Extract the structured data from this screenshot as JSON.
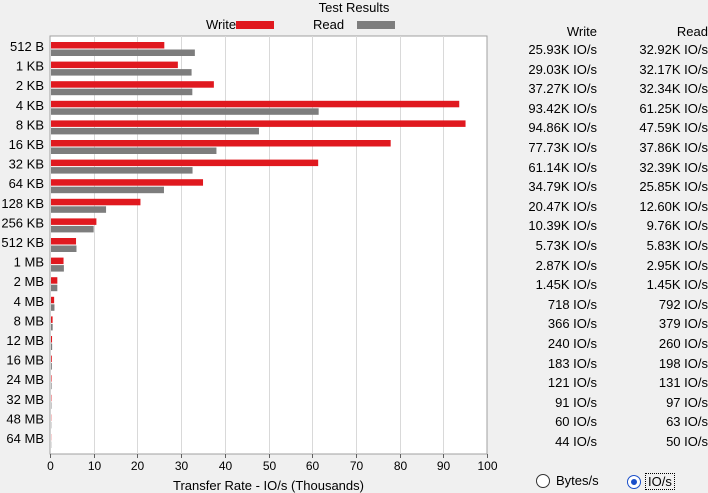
{
  "title": "Test Results",
  "legend": {
    "write_label": "Write",
    "read_label": "Read"
  },
  "colors": {
    "write": "#e0191f",
    "read": "#7d7d7d",
    "grid": "#d9d9d9",
    "plot_bg": "#ffffff"
  },
  "table": {
    "write_header": "Write",
    "read_header": "Read",
    "rows": [
      {
        "write": "25.93K IO/s",
        "read": "32.92K IO/s"
      },
      {
        "write": "29.03K IO/s",
        "read": "32.17K IO/s"
      },
      {
        "write": "37.27K IO/s",
        "read": "32.34K IO/s"
      },
      {
        "write": "93.42K IO/s",
        "read": "61.25K IO/s"
      },
      {
        "write": "94.86K IO/s",
        "read": "47.59K IO/s"
      },
      {
        "write": "77.73K IO/s",
        "read": "37.86K IO/s"
      },
      {
        "write": "61.14K IO/s",
        "read": "32.39K IO/s"
      },
      {
        "write": "34.79K IO/s",
        "read": "25.85K IO/s"
      },
      {
        "write": "20.47K IO/s",
        "read": "12.60K IO/s"
      },
      {
        "write": "10.39K IO/s",
        "read": "9.76K IO/s"
      },
      {
        "write": "5.73K IO/s",
        "read": "5.83K IO/s"
      },
      {
        "write": "2.87K IO/s",
        "read": "2.95K IO/s"
      },
      {
        "write": "1.45K IO/s",
        "read": "1.45K IO/s"
      },
      {
        "write": "718 IO/s",
        "read": "792 IO/s"
      },
      {
        "write": "366 IO/s",
        "read": "379 IO/s"
      },
      {
        "write": "240 IO/s",
        "read": "260 IO/s"
      },
      {
        "write": "183 IO/s",
        "read": "198 IO/s"
      },
      {
        "write": "121 IO/s",
        "read": "131 IO/s"
      },
      {
        "write": "91 IO/s",
        "read": "97 IO/s"
      },
      {
        "write": "60 IO/s",
        "read": "63 IO/s"
      },
      {
        "write": "44 IO/s",
        "read": "50 IO/s"
      }
    ]
  },
  "options": {
    "bytes_label": "Bytes/s",
    "io_label": "IO/s",
    "selected": "io"
  },
  "chart_data": {
    "type": "bar",
    "orientation": "horizontal",
    "categories": [
      "512 B",
      "1 KB",
      "2 KB",
      "4 KB",
      "8 KB",
      "16 KB",
      "32 KB",
      "64 KB",
      "128 KB",
      "256 KB",
      "512 KB",
      "1 MB",
      "2 MB",
      "4 MB",
      "8 MB",
      "12 MB",
      "16 MB",
      "24 MB",
      "32 MB",
      "48 MB",
      "64 MB"
    ],
    "series": [
      {
        "name": "Write",
        "values": [
          25.93,
          29.03,
          37.27,
          93.42,
          94.86,
          77.73,
          61.14,
          34.79,
          20.47,
          10.39,
          5.73,
          2.87,
          1.45,
          0.718,
          0.366,
          0.24,
          0.183,
          0.121,
          0.091,
          0.06,
          0.044
        ]
      },
      {
        "name": "Read",
        "values": [
          32.92,
          32.17,
          32.34,
          61.25,
          47.59,
          37.86,
          32.39,
          25.85,
          12.6,
          9.76,
          5.83,
          2.95,
          1.45,
          0.792,
          0.379,
          0.26,
          0.198,
          0.131,
          0.097,
          0.063,
          0.05
        ]
      }
    ],
    "xlabel": "Transfer Rate - IO/s (Thousands)",
    "xlim": [
      0,
      100
    ],
    "xticks": [
      "0",
      "10",
      "20",
      "30",
      "40",
      "50",
      "60",
      "70",
      "80",
      "90",
      "100"
    ],
    "grid": true,
    "legend_position": "top"
  }
}
